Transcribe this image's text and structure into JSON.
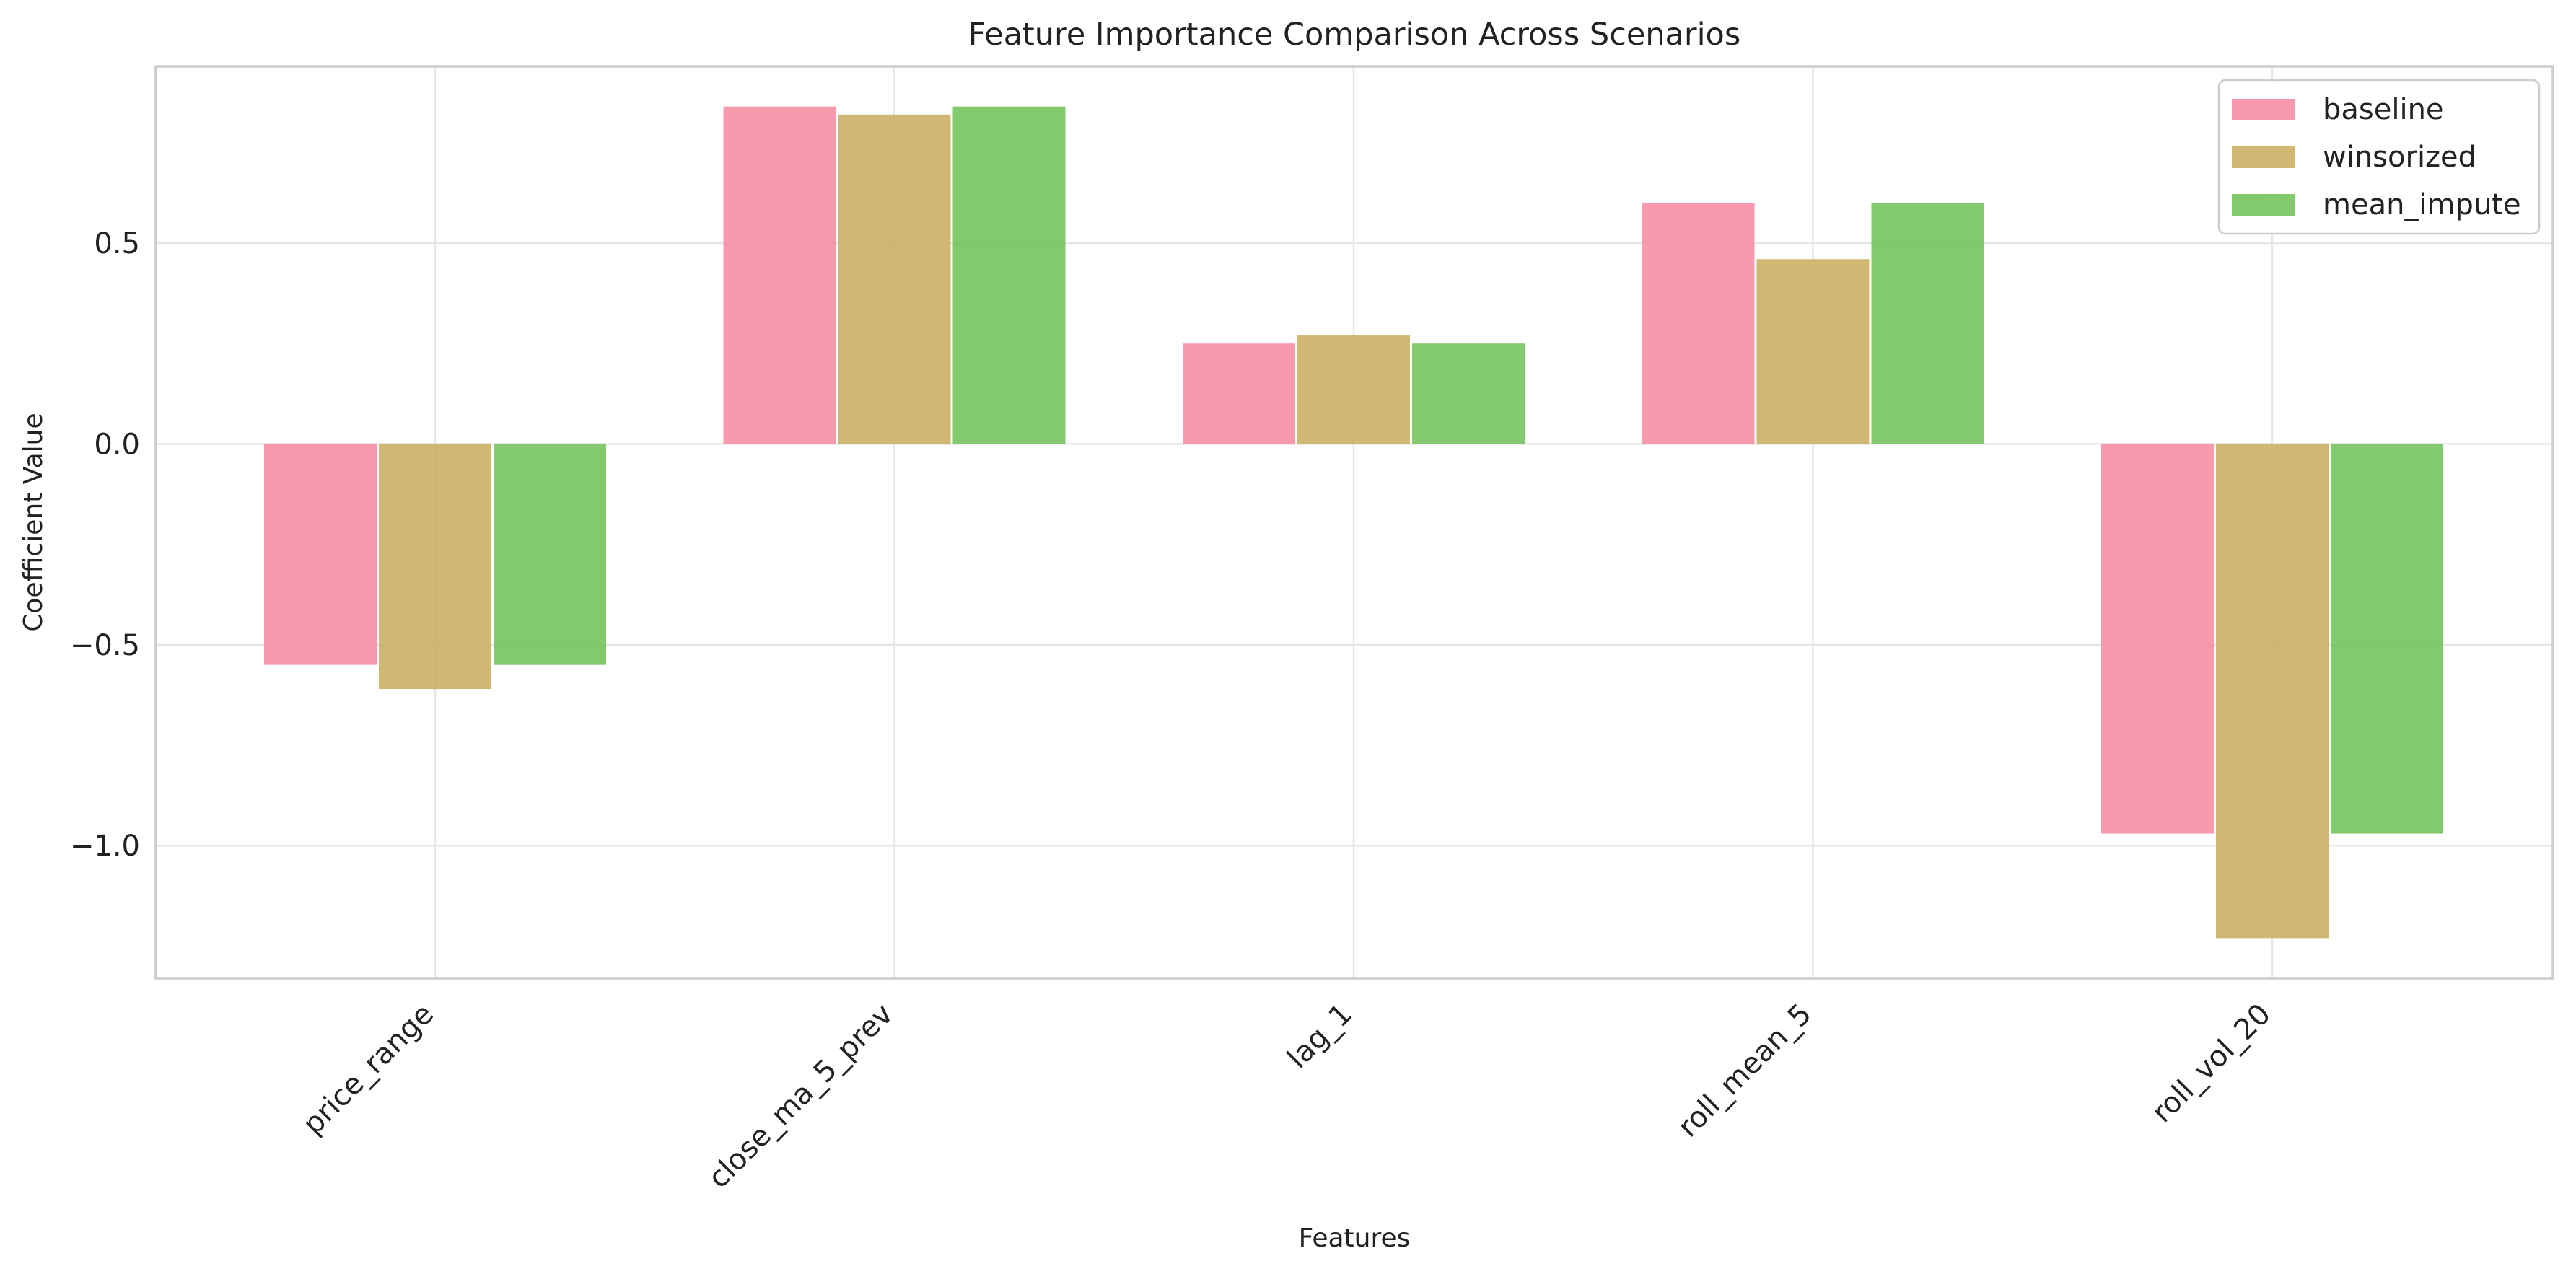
{
  "chart_data": {
    "type": "bar",
    "title": "Feature Importance Comparison Across Scenarios",
    "xlabel": "Features",
    "ylabel": "Coefficient Value",
    "categories": [
      "price_range",
      "close_ma_5_prev",
      "lag_1",
      "roll_mean_5",
      "roll_vol_20"
    ],
    "series": [
      {
        "name": "baseline",
        "color": "#f7889f",
        "values": [
          -0.55,
          0.84,
          0.25,
          0.6,
          -0.97
        ]
      },
      {
        "name": "winsorized",
        "color": "#c8ac5c",
        "values": [
          -0.61,
          0.82,
          0.27,
          0.46,
          -1.23
        ]
      },
      {
        "name": "mean_impute",
        "color": "#6dbf55",
        "values": [
          -0.55,
          0.84,
          0.25,
          0.6,
          -0.97
        ]
      }
    ],
    "ylim": [
      -1.33,
      0.94
    ],
    "yticks": [
      0.5,
      0.0,
      -0.5,
      -1.0
    ],
    "ytick_labels": [
      "0.5",
      "0.0",
      "−0.5",
      "−1.0"
    ],
    "grid": true,
    "legend_position": "top-right"
  }
}
